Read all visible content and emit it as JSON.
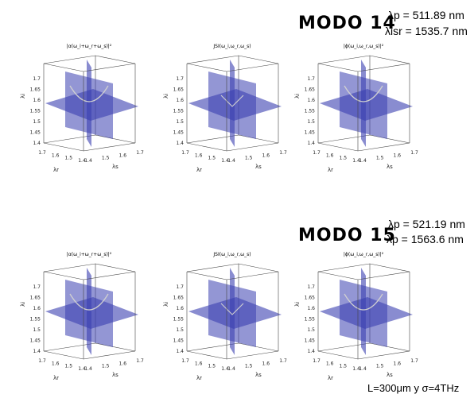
{
  "modes": [
    {
      "title": "MODO 14",
      "params": [
        "λp = 511.89 nm",
        "λisr = 1535.7 nm"
      ],
      "plots": [
        {
          "title": "|α(ω_i+ω_r+ω_s)|²"
        },
        {
          "title": "JSI(ω_i,ω_r,ω_s)"
        },
        {
          "title": "|ϕ(ω_i,ω_r,ω_s)|²"
        }
      ]
    },
    {
      "title": "MODO 15",
      "params": [
        "λp = 521.19 nm",
        "λp = 1563.6 nm"
      ],
      "plots": [
        {
          "title": "|α(ω_i+ω_r+ω_s)|²"
        },
        {
          "title": "JSI(ω_i,ω_r,ω_s)"
        },
        {
          "title": "|ϕ(ω_i,ω_r,ω_s)|²"
        }
      ]
    }
  ],
  "axes": {
    "z_label": "λi",
    "x_label": "λr",
    "y_label": "λs",
    "z_ticks": [
      "1.4",
      "1.45",
      "1.5",
      "1.55",
      "1.6",
      "1.65",
      "1.7"
    ],
    "x_ticks": [
      "1.4",
      "1.5",
      "1.6",
      "1.7"
    ],
    "y_ticks": [
      "1.4",
      "1.5",
      "1.6",
      "1.7"
    ]
  },
  "footer": "L=300μm y σ=4THz",
  "colors": {
    "plane": "#3b3fb0",
    "box": "#444444",
    "curve": "#d0d0d0"
  }
}
